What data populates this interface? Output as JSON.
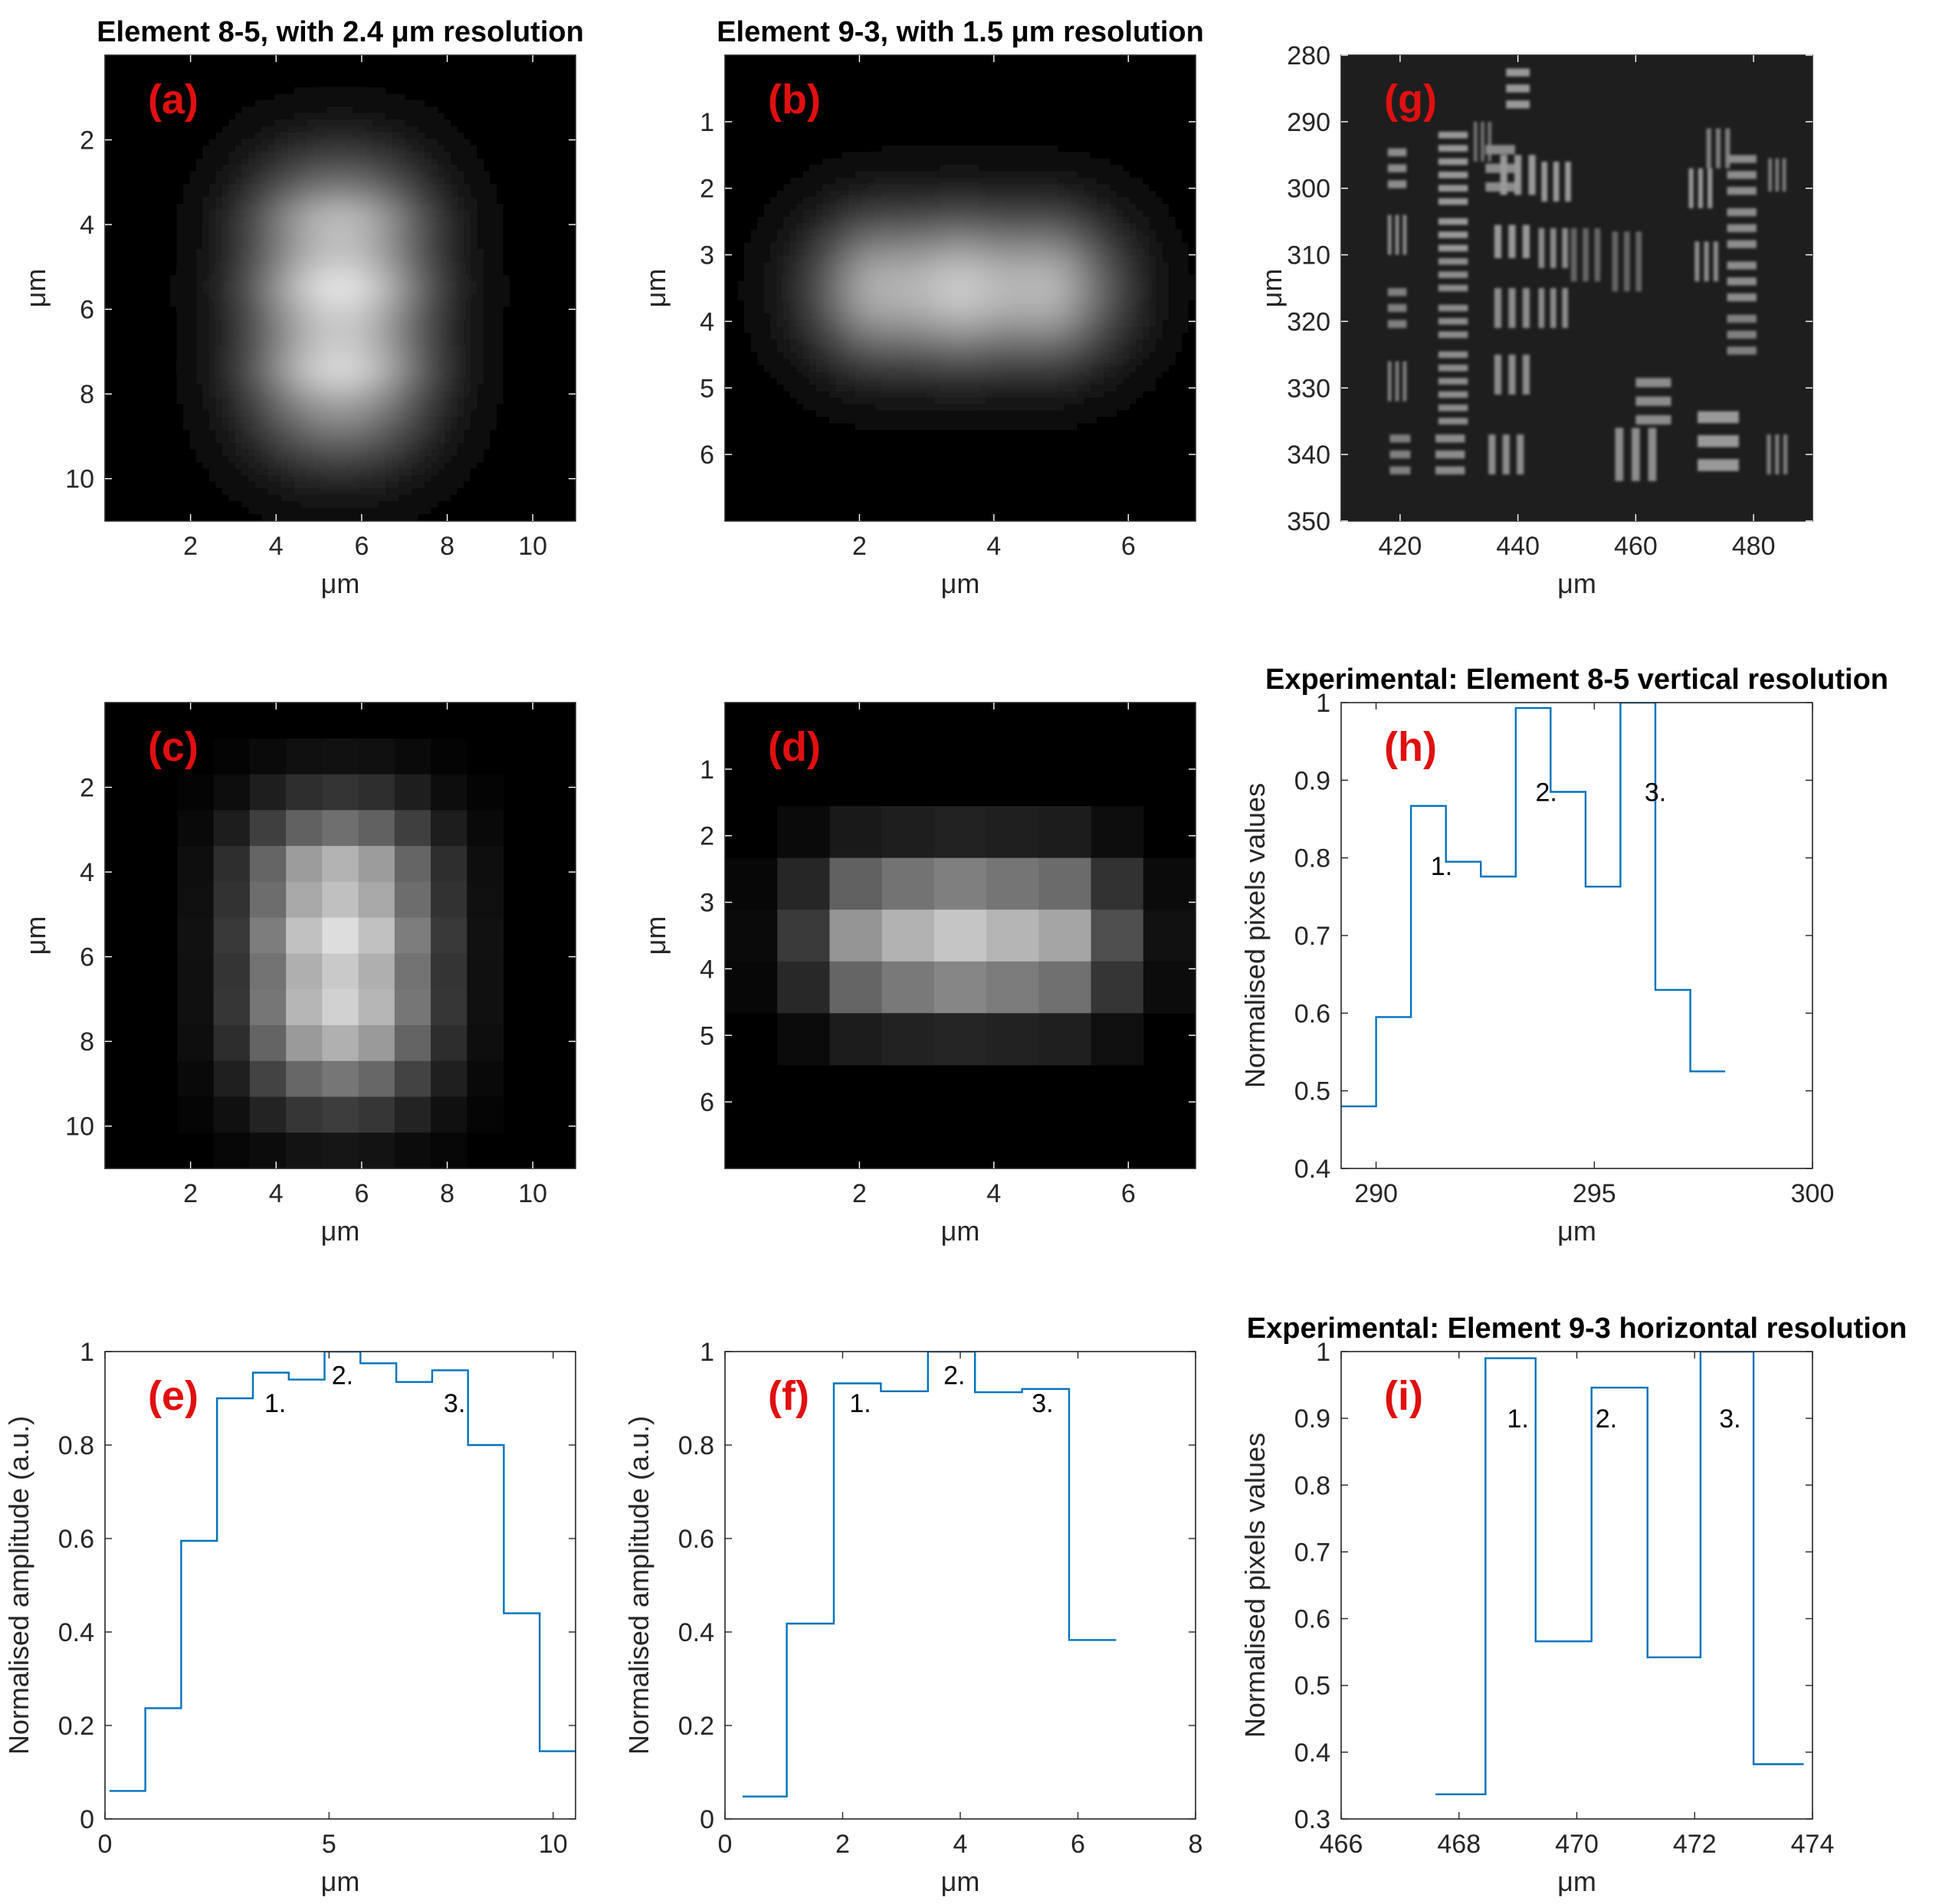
{
  "colors": {
    "line": "#0072bd",
    "label": "#e01010",
    "axis": "#262626"
  },
  "chart_data": [
    {
      "id": "a",
      "type": "heatmap",
      "panel_label": "(a)",
      "title": "Element 8-5, with 2.4 μm resolution",
      "xlabel": "μm",
      "ylabel": "μm",
      "xlim": [
        0,
        11
      ],
      "ylim": [
        0,
        11
      ],
      "xticks": [
        2,
        4,
        6,
        8,
        10
      ],
      "yticks": [
        2,
        4,
        6,
        8,
        10
      ],
      "image": {
        "style": "smooth",
        "box": [
          4.05,
          3.05,
          6.95,
          8.95
        ],
        "blur": 1.5,
        "peaks": [
          3.7,
          5.5,
          7.5
        ],
        "peak_axis": "y"
      }
    },
    {
      "id": "b",
      "type": "heatmap",
      "panel_label": "(b)",
      "title": "Element 9-3, with 1.5 μm resolution",
      "xlabel": "μm",
      "ylabel": "μm",
      "xlim": [
        0,
        7
      ],
      "ylim": [
        0,
        7
      ],
      "xticks": [
        2,
        4,
        6
      ],
      "yticks": [
        1,
        2,
        3,
        4,
        5,
        6
      ],
      "image": {
        "style": "smooth",
        "box": [
          1.6,
          2.85,
          5.6,
          4.2
        ],
        "blur": 0.9,
        "peaks": [
          2.0,
          3.5,
          5.0
        ],
        "peak_axis": "x"
      }
    },
    {
      "id": "g",
      "type": "heatmap",
      "panel_label": "(g)",
      "title": "",
      "xlabel": "μm",
      "ylabel": "μm",
      "xlim": [
        410,
        490
      ],
      "ylim": [
        280,
        350
      ],
      "xticks": [
        420,
        440,
        460,
        480
      ],
      "yticks": [
        280,
        290,
        300,
        310,
        320,
        330,
        340,
        350
      ],
      "image": {
        "style": "target"
      }
    },
    {
      "id": "c",
      "type": "heatmap",
      "panel_label": "(c)",
      "title": "",
      "xlabel": "μm",
      "ylabel": "μm",
      "xlim": [
        0,
        11
      ],
      "ylim": [
        0,
        11
      ],
      "xticks": [
        2,
        4,
        6,
        8,
        10
      ],
      "yticks": [
        2,
        4,
        6,
        8,
        10
      ],
      "image": {
        "style": "pixel",
        "grid": 13,
        "box": [
          4.05,
          3.05,
          6.95,
          8.95
        ],
        "blur": 1.5,
        "peaks": [
          3.7,
          5.5,
          7.5
        ],
        "peak_axis": "y"
      }
    },
    {
      "id": "d",
      "type": "heatmap",
      "panel_label": "(d)",
      "title": "",
      "xlabel": "μm",
      "ylabel": "μm",
      "xlim": [
        0,
        7
      ],
      "ylim": [
        0,
        7
      ],
      "xticks": [
        2,
        4,
        6
      ],
      "yticks": [
        1,
        2,
        3,
        4,
        5,
        6
      ],
      "image": {
        "style": "pixel",
        "grid": 9,
        "box": [
          1.6,
          2.85,
          5.6,
          4.2
        ],
        "blur": 0.9,
        "peaks": [
          2.0,
          3.5,
          5.0
        ],
        "peak_axis": "x"
      }
    },
    {
      "id": "h",
      "type": "line",
      "panel_label": "(h)",
      "title": "Experimental: Element 8-5 vertical resolution",
      "xlabel": "μm",
      "ylabel": "Normalised pixels values",
      "xlim": [
        289.2,
        300
      ],
      "ylim": [
        0.4,
        1
      ],
      "xticks": [
        290,
        295,
        300
      ],
      "yticks": [
        0.4,
        0.5,
        0.6,
        0.7,
        0.8,
        0.9,
        1
      ],
      "step_edges": [
        289.2,
        290.0,
        290.8,
        291.6,
        292.4,
        293.2,
        294.0,
        294.8,
        295.6,
        296.4,
        297.2,
        298.0
      ],
      "step_values": [
        0.48,
        0.595,
        0.867,
        0.795,
        0.776,
        0.993,
        0.885,
        0.763,
        1.0,
        0.63,
        0.525
      ],
      "annotations": [
        {
          "text": "1.",
          "x": 291.5,
          "y": 0.79
        },
        {
          "text": "2.",
          "x": 293.9,
          "y": 0.885
        },
        {
          "text": "3.",
          "x": 296.4,
          "y": 0.885
        }
      ]
    },
    {
      "id": "e",
      "type": "line",
      "panel_label": "(e)",
      "title": "",
      "xlabel": "μm",
      "ylabel": "Normalised amplitude (a.u.)",
      "xlim": [
        0,
        10.5
      ],
      "ylim": [
        0,
        1
      ],
      "xticks": [
        0,
        5,
        10
      ],
      "yticks": [
        0,
        0.2,
        0.4,
        0.6,
        0.8,
        1
      ],
      "step_edges": [
        0.1,
        0.9,
        1.7,
        2.5,
        3.3,
        4.1,
        4.9,
        5.7,
        6.5,
        7.3,
        8.1,
        8.9,
        9.7,
        10.5
      ],
      "step_values": [
        0.06,
        0.237,
        0.595,
        0.9,
        0.955,
        0.94,
        1.0,
        0.975,
        0.935,
        0.96,
        0.8,
        0.44,
        0.145
      ],
      "annotations": [
        {
          "text": "1.",
          "x": 3.8,
          "y": 0.89
        },
        {
          "text": "2.",
          "x": 5.3,
          "y": 0.95
        },
        {
          "text": "3.",
          "x": 7.8,
          "y": 0.89
        }
      ]
    },
    {
      "id": "f",
      "type": "line",
      "panel_label": "(f)",
      "title": "",
      "xlabel": "μm",
      "ylabel": "Normalised amplitude (a.u.)",
      "xlim": [
        0,
        8
      ],
      "ylim": [
        0,
        1
      ],
      "xticks": [
        0,
        2,
        4,
        6,
        8
      ],
      "yticks": [
        0,
        0.2,
        0.4,
        0.6,
        0.8,
        1
      ],
      "step_edges": [
        0.3,
        1.05,
        1.85,
        2.65,
        3.45,
        4.25,
        5.05,
        5.85,
        6.65
      ],
      "step_values": [
        0.048,
        0.418,
        0.932,
        0.915,
        1.0,
        0.913,
        0.92,
        0.383
      ],
      "annotations": [
        {
          "text": "1.",
          "x": 2.3,
          "y": 0.89
        },
        {
          "text": "2.",
          "x": 3.9,
          "y": 0.95
        },
        {
          "text": "3.",
          "x": 5.4,
          "y": 0.89
        }
      ]
    },
    {
      "id": "i",
      "type": "line",
      "panel_label": "(i)",
      "title": "Experimental: Element 9-3 horizontal resolution",
      "xlabel": "μm",
      "ylabel": "Normalised pixels values",
      "xlim": [
        466,
        474
      ],
      "ylim": [
        0.3,
        1
      ],
      "xticks": [
        466,
        468,
        470,
        472,
        474
      ],
      "yticks": [
        0.3,
        0.4,
        0.5,
        0.6,
        0.7,
        0.8,
        0.9,
        1
      ],
      "step_edges": [
        467.6,
        468.45,
        469.3,
        470.25,
        471.2,
        472.1,
        473.0,
        473.85
      ],
      "step_values": [
        0.337,
        0.99,
        0.566,
        0.946,
        0.542,
        1.0,
        0.382
      ],
      "annotations": [
        {
          "text": "1.",
          "x": 469.0,
          "y": 0.9
        },
        {
          "text": "2.",
          "x": 470.5,
          "y": 0.9
        },
        {
          "text": "3.",
          "x": 472.6,
          "y": 0.9
        }
      ]
    }
  ]
}
